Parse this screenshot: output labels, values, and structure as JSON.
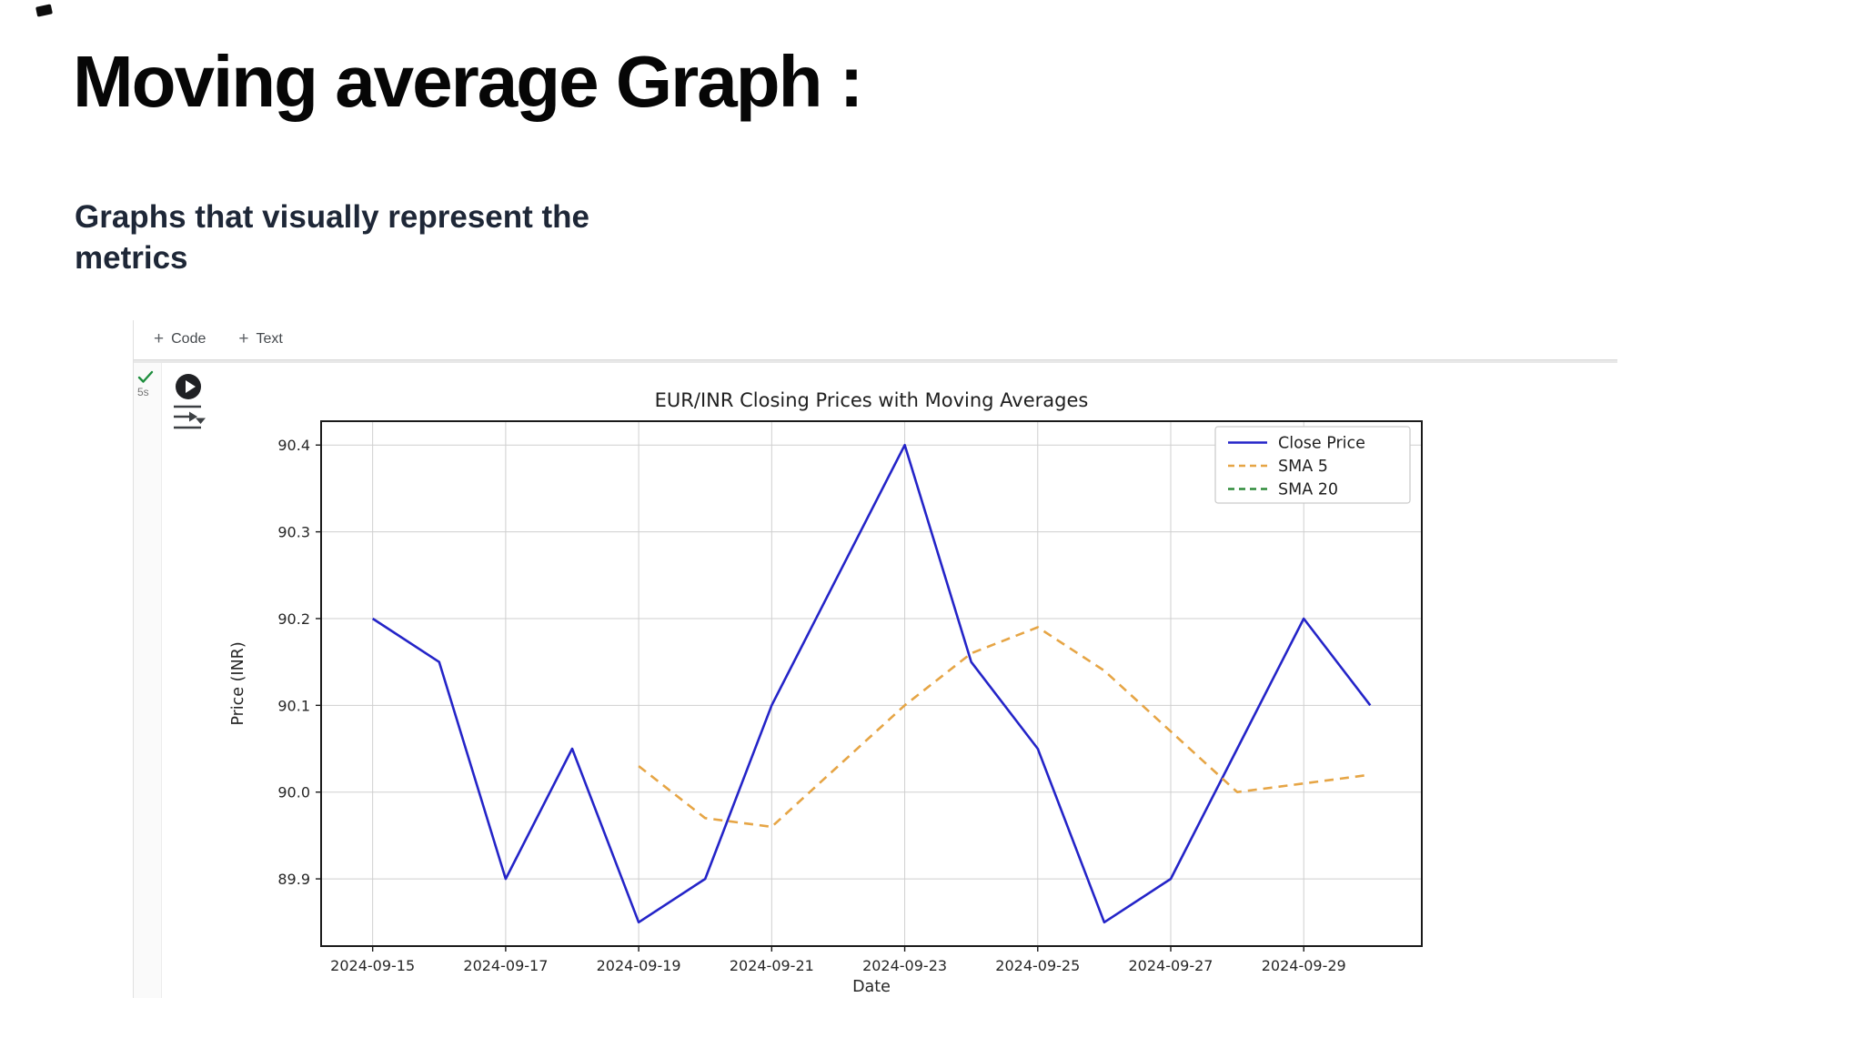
{
  "page": {
    "title": "Moving average Graph :",
    "subtitle_line1": "Graphs that visually represent the",
    "subtitle_line2": "metrics"
  },
  "notebook": {
    "toolbar": {
      "plus_icon": "+",
      "code_label": "Code",
      "text_label": "Text"
    },
    "cell": {
      "status": "success",
      "exec_time": "5s"
    },
    "ui_colors": {
      "check_green": "#1e8e3e",
      "play_button_bg": "#202124",
      "gutter_line": "#e0e0e0"
    }
  },
  "chart_data": {
    "type": "line",
    "title": "EUR/INR Closing Prices with Moving Averages",
    "xlabel": "Date",
    "ylabel": "Price (INR)",
    "x": [
      "2024-09-15",
      "2024-09-16",
      "2024-09-17",
      "2024-09-18",
      "2024-09-19",
      "2024-09-20",
      "2024-09-21",
      "2024-09-22",
      "2024-09-23",
      "2024-09-24",
      "2024-09-25",
      "2024-09-26",
      "2024-09-27",
      "2024-09-28",
      "2024-09-29",
      "2024-09-30"
    ],
    "series": [
      {
        "name": "Close Price",
        "color": "#2424c8",
        "style": "solid",
        "values": [
          90.2,
          90.15,
          89.9,
          90.05,
          89.85,
          89.9,
          90.1,
          90.25,
          90.4,
          90.15,
          90.05,
          89.85,
          89.9,
          90.05,
          90.2,
          90.1
        ]
      },
      {
        "name": "SMA 5",
        "color": "#e6a545",
        "style": "dashed",
        "values": [
          null,
          null,
          null,
          null,
          90.03,
          89.97,
          89.96,
          90.03,
          90.1,
          90.16,
          90.19,
          90.14,
          90.07,
          90.0,
          90.01,
          90.02
        ]
      },
      {
        "name": "SMA 20",
        "color": "#2f8b3a",
        "style": "dashed",
        "values": []
      }
    ],
    "xticks": [
      "2024-09-15",
      "2024-09-17",
      "2024-09-19",
      "2024-09-21",
      "2024-09-23",
      "2024-09-25",
      "2024-09-27",
      "2024-09-29"
    ],
    "yticks": [
      89.9,
      90.0,
      90.1,
      90.2,
      90.3,
      90.4
    ],
    "xlim_days": [
      14.225,
      30.775
    ],
    "ylim": [
      89.8225,
      90.4275
    ],
    "grid": true,
    "legend_position": "upper right"
  }
}
